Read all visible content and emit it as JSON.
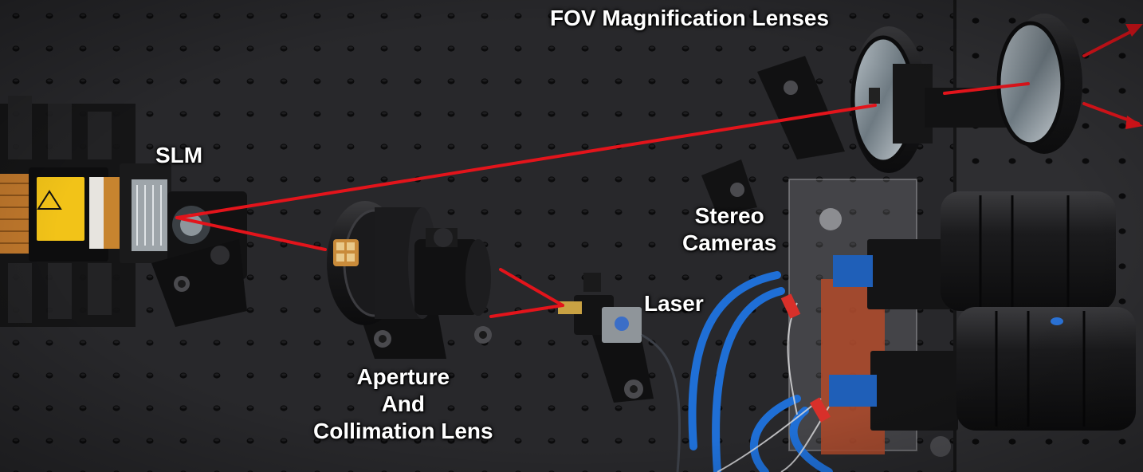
{
  "labels": {
    "fov": "FOV Magnification Lenses",
    "slm": "SLM",
    "stereo_line1": "Stereo",
    "stereo_line2": "Cameras",
    "laser": "Laser",
    "aperture_line1": "Aperture",
    "aperture_line2": "And",
    "aperture_line3": "Collimation Lens"
  },
  "colors": {
    "background": "#262629",
    "beam": "#e3141b",
    "label_text": "#ffffff",
    "cable_blue": "#1f6fd6",
    "kapton_orange": "#b24a2a",
    "warning_yellow": "#f2c318"
  }
}
